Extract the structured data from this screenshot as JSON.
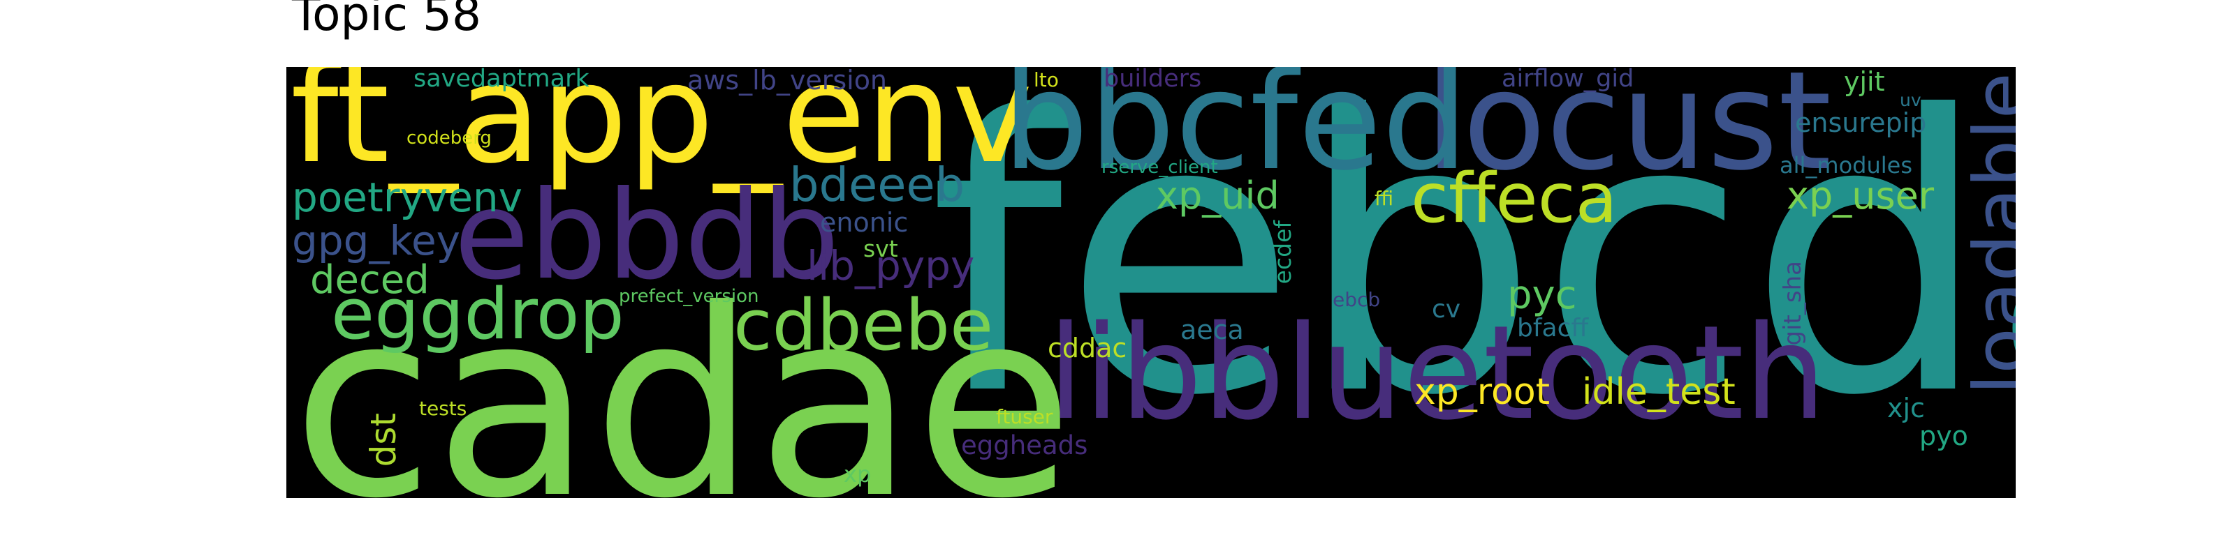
{
  "title": "Topic 58",
  "colors": {
    "background": "#000000",
    "page": "#ffffff",
    "title": "#000000"
  },
  "words": [
    {
      "text": "febcda",
      "color": "#21918c",
      "rotated": false
    },
    {
      "text": "cadae",
      "color": "#7ad151",
      "rotated": false
    },
    {
      "text": "ft_app_env",
      "color": "#fde725",
      "rotated": false
    },
    {
      "text": "locust",
      "color": "#3b528b",
      "rotated": false
    },
    {
      "text": "bbcfed",
      "color": "#2a788e",
      "rotated": false
    },
    {
      "text": "libbluetooth",
      "color": "#472d7b",
      "rotated": false
    },
    {
      "text": "ebbdb",
      "color": "#472d7b",
      "rotated": false
    },
    {
      "text": "loadable",
      "color": "#3b528b",
      "rotated": true
    },
    {
      "text": "eggdrop",
      "color": "#5ec962",
      "rotated": false
    },
    {
      "text": "cdbebe",
      "color": "#7ad151",
      "rotated": false
    },
    {
      "text": "cffeca",
      "color": "#bddf26",
      "rotated": false
    },
    {
      "text": "bdeeeb",
      "color": "#2a788e",
      "rotated": false
    },
    {
      "text": "poetryvenv",
      "color": "#22a884",
      "rotated": false
    },
    {
      "text": "gpg_key",
      "color": "#3b528b",
      "rotated": false
    },
    {
      "text": "lib_pypy",
      "color": "#472d7b",
      "rotated": false
    },
    {
      "text": "xp_uid",
      "color": "#5ec962",
      "rotated": false
    },
    {
      "text": "xp_user",
      "color": "#7ad151",
      "rotated": false
    },
    {
      "text": "xp_root",
      "color": "#fde725",
      "rotated": false
    },
    {
      "text": "idle_test",
      "color": "#d2e21b",
      "rotated": false
    },
    {
      "text": "deced",
      "color": "#5ec962",
      "rotated": false
    },
    {
      "text": "pyc",
      "color": "#5ec962",
      "rotated": false
    },
    {
      "text": "ensurepip",
      "color": "#2a788e",
      "rotated": false
    },
    {
      "text": "aws_lb_version",
      "color": "#414487",
      "rotated": false
    },
    {
      "text": "savedaptmark",
      "color": "#22a884",
      "rotated": false
    },
    {
      "text": "enonic",
      "color": "#3b528b",
      "rotated": false
    },
    {
      "text": "dst",
      "color": "#addc30",
      "rotated": true
    },
    {
      "text": "cddac",
      "color": "#bddf26",
      "rotated": false
    },
    {
      "text": "airflow_gid",
      "color": "#414487",
      "rotated": false
    },
    {
      "text": "yjit",
      "color": "#5ec962",
      "rotated": false
    },
    {
      "text": "all_modules",
      "color": "#2a788e",
      "rotated": false
    },
    {
      "text": "builders",
      "color": "#472d7b",
      "rotated": false
    },
    {
      "text": "svt",
      "color": "#7ad151",
      "rotated": false
    },
    {
      "text": "aeca",
      "color": "#2a788e",
      "rotated": false
    },
    {
      "text": "bfacff",
      "color": "#2a788e",
      "rotated": false
    },
    {
      "text": "xjc",
      "color": "#21918c",
      "rotated": false
    },
    {
      "text": "eggheads",
      "color": "#472d7b",
      "rotated": false
    },
    {
      "text": "pyo",
      "color": "#22a884",
      "rotated": false
    },
    {
      "text": "ecdef",
      "color": "#22a884",
      "rotated": true
    },
    {
      "text": "git_sha",
      "color": "#414487",
      "rotated": true
    },
    {
      "text": "cv",
      "color": "#2a788e",
      "rotated": false
    },
    {
      "text": "codeberg",
      "color": "#d2e21b",
      "rotated": false
    },
    {
      "text": "prefect_version",
      "color": "#5ec962",
      "rotated": false
    },
    {
      "text": "rserve_client",
      "color": "#22a884",
      "rotated": false
    },
    {
      "text": "lto",
      "color": "#d2e21b",
      "rotated": false
    },
    {
      "text": "ffi",
      "color": "#bddf26",
      "rotated": false
    },
    {
      "text": "ebcb",
      "color": "#414487",
      "rotated": false
    },
    {
      "text": "tests",
      "color": "#bddf26",
      "rotated": false
    },
    {
      "text": "ftuser",
      "color": "#bddf26",
      "rotated": false
    },
    {
      "text": "xp",
      "color": "#5ec962",
      "rotated": false
    },
    {
      "text": "uv",
      "color": "#2a788e",
      "rotated": false
    }
  ]
}
